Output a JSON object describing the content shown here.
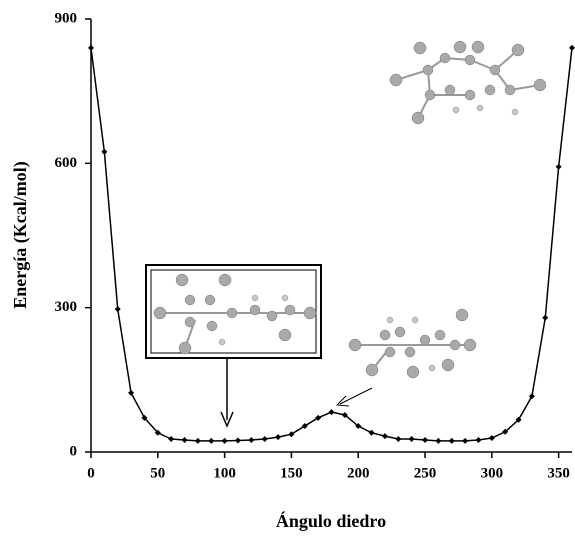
{
  "chart_data": {
    "type": "line",
    "x_label": "Ángulo diedro",
    "y_label": "Energía (Kcal/mol)",
    "x": [
      0,
      10,
      20,
      30,
      40,
      50,
      60,
      70,
      80,
      90,
      100,
      110,
      120,
      130,
      140,
      150,
      160,
      170,
      180,
      190,
      200,
      210,
      220,
      230,
      240,
      250,
      260,
      270,
      280,
      290,
      300,
      310,
      320,
      330,
      340,
      350,
      360
    ],
    "series": [
      {
        "name": "Energía",
        "color": "#000000",
        "values": [
          840,
          624,
          297,
          123,
          71,
          40,
          27,
          25,
          23,
          23,
          23,
          24,
          25,
          27,
          31,
          37,
          54,
          71,
          83,
          77,
          54,
          40,
          33,
          27,
          27,
          25,
          23,
          23,
          23,
          25,
          29,
          42,
          67,
          116,
          279,
          593,
          840
        ]
      }
    ],
    "xlim": [
      0,
      360
    ],
    "xticks": [
      0,
      50,
      100,
      150,
      200,
      250,
      300,
      350
    ],
    "ylim": [
      0,
      900
    ],
    "yticks": [
      0,
      300,
      600,
      900
    ]
  }
}
